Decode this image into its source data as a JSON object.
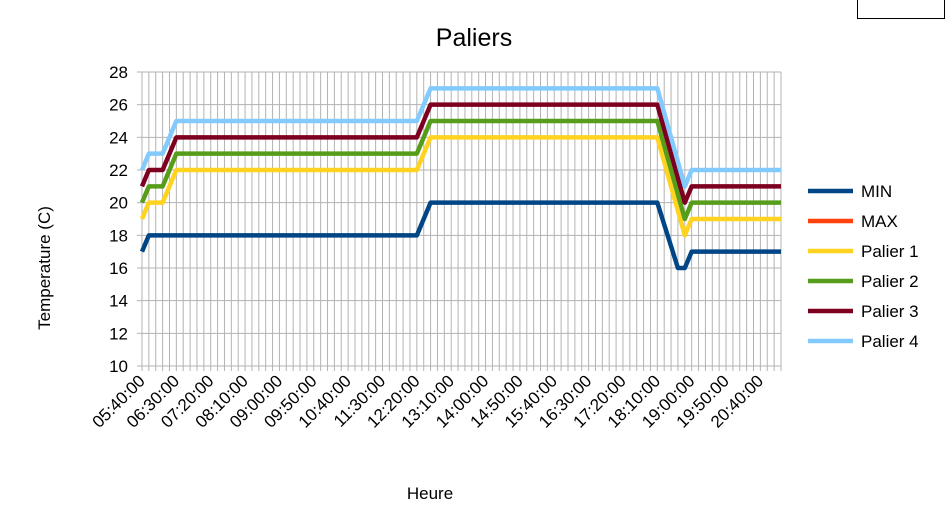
{
  "chart_data": {
    "type": "line",
    "title": "Paliers",
    "xlabel": "Heure",
    "ylabel": "Temperature (C)",
    "ylim": [
      10,
      28
    ],
    "yticks": [
      10,
      12,
      14,
      16,
      18,
      20,
      22,
      24,
      26,
      28
    ],
    "x_start": "05:40:00",
    "x_end": "21:10:00",
    "x_step_minutes": 10,
    "x_tick_labels": [
      "05:40:00",
      "06:30:00",
      "07:20:00",
      "08:10:00",
      "09:00:00",
      "09:50:00",
      "10:40:00",
      "11:30:00",
      "12:20:00",
      "13:10:00",
      "14:00:00",
      "14:50:00",
      "15:40:00",
      "16:30:00",
      "17:20:00",
      "18:10:00",
      "19:00:00",
      "19:50:00",
      "20:40:00"
    ],
    "grid": true,
    "legend_position": "right",
    "series": [
      {
        "name": "MIN",
        "color": "#004586",
        "points": [
          [
            "05:40",
            17
          ],
          [
            "05:50",
            18
          ],
          [
            "12:20",
            18
          ],
          [
            "12:40",
            20
          ],
          [
            "18:10",
            20
          ],
          [
            "18:40",
            16
          ],
          [
            "18:50",
            16
          ],
          [
            "19:00",
            17
          ],
          [
            "21:10",
            17
          ]
        ]
      },
      {
        "name": "MAX",
        "color": "#ff420e",
        "points": []
      },
      {
        "name": "Palier 1",
        "color": "#ffd320",
        "points": [
          [
            "05:40",
            19
          ],
          [
            "05:50",
            20
          ],
          [
            "06:10",
            20
          ],
          [
            "06:30",
            22
          ],
          [
            "12:20",
            22
          ],
          [
            "12:40",
            24
          ],
          [
            "18:10",
            24
          ],
          [
            "18:50",
            18
          ],
          [
            "19:00",
            19
          ],
          [
            "21:10",
            19
          ]
        ]
      },
      {
        "name": "Palier 2",
        "color": "#579d1c",
        "points": [
          [
            "05:40",
            20
          ],
          [
            "05:50",
            21
          ],
          [
            "06:10",
            21
          ],
          [
            "06:30",
            23
          ],
          [
            "12:20",
            23
          ],
          [
            "12:40",
            25
          ],
          [
            "18:10",
            25
          ],
          [
            "18:50",
            19
          ],
          [
            "19:00",
            20
          ],
          [
            "21:10",
            20
          ]
        ]
      },
      {
        "name": "Palier 3",
        "color": "#7e0021",
        "points": [
          [
            "05:40",
            21
          ],
          [
            "05:50",
            22
          ],
          [
            "06:10",
            22
          ],
          [
            "06:30",
            24
          ],
          [
            "12:20",
            24
          ],
          [
            "12:40",
            26
          ],
          [
            "18:10",
            26
          ],
          [
            "18:50",
            20
          ],
          [
            "19:00",
            21
          ],
          [
            "21:10",
            21
          ]
        ]
      },
      {
        "name": "Palier 4",
        "color": "#83caff",
        "points": [
          [
            "05:40",
            22
          ],
          [
            "05:50",
            23
          ],
          [
            "06:10",
            23
          ],
          [
            "06:30",
            25
          ],
          [
            "12:20",
            25
          ],
          [
            "12:40",
            27
          ],
          [
            "18:10",
            27
          ],
          [
            "18:50",
            21
          ],
          [
            "19:00",
            22
          ],
          [
            "21:10",
            22
          ]
        ]
      }
    ]
  }
}
